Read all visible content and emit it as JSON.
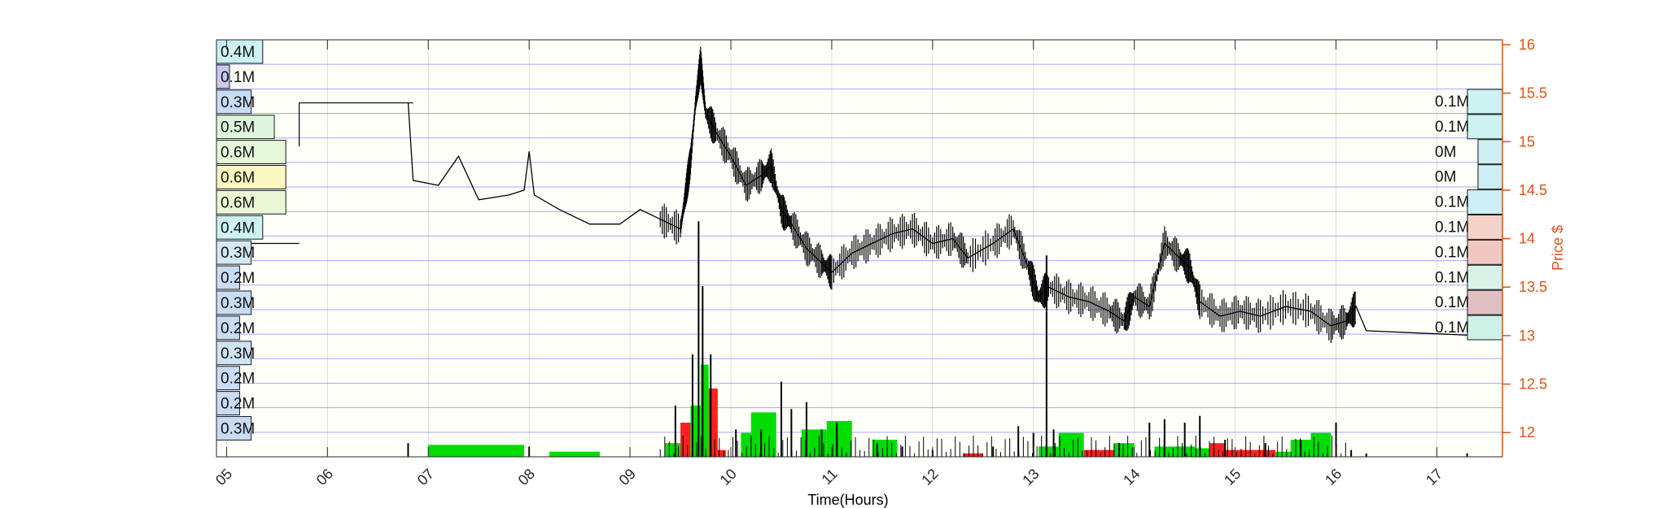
{
  "chart_data": {
    "type": "line",
    "title": "",
    "xlabel": "Time(Hours)",
    "ylabel_right": "Price $",
    "x_ticks": [
      "05",
      "06",
      "07",
      "08",
      "09",
      "10",
      "11",
      "12",
      "13",
      "14",
      "15",
      "16",
      "17"
    ],
    "xlim": [
      4.9,
      17.65
    ],
    "ylim": [
      11.75,
      16.05
    ],
    "y_ticks": [
      "12",
      "12.5",
      "13",
      "13.5",
      "14",
      "14.5",
      "15",
      "15.5",
      "16"
    ],
    "grid": true,
    "colors": {
      "axis_right": "#d95319",
      "grid": "#8080ff",
      "price_line": "#000000",
      "volume_up": "#00dd00",
      "volume_down": "#ff2020",
      "plot_bg": "#fffffa"
    },
    "price_series": {
      "name": "Price",
      "points": [
        [
          6.8,
          15.4
        ],
        [
          6.85,
          14.6
        ],
        [
          7.1,
          14.55
        ],
        [
          7.3,
          14.85
        ],
        [
          7.5,
          14.4
        ],
        [
          7.8,
          14.45
        ],
        [
          7.95,
          14.5
        ],
        [
          8.0,
          14.9
        ],
        [
          8.05,
          14.45
        ],
        [
          8.3,
          14.3
        ],
        [
          8.6,
          14.15
        ],
        [
          8.9,
          14.15
        ],
        [
          9.1,
          14.3
        ],
        [
          9.3,
          14.2
        ],
        [
          9.5,
          14.1
        ],
        [
          9.55,
          14.45
        ],
        [
          9.6,
          14.8
        ],
        [
          9.65,
          15.4
        ],
        [
          9.7,
          15.8
        ],
        [
          9.75,
          15.3
        ],
        [
          9.85,
          15.1
        ],
        [
          10.0,
          14.85
        ],
        [
          10.15,
          14.55
        ],
        [
          10.3,
          14.65
        ],
        [
          10.4,
          14.75
        ],
        [
          10.5,
          14.3
        ],
        [
          10.6,
          14.15
        ],
        [
          10.75,
          13.9
        ],
        [
          10.9,
          13.75
        ],
        [
          11.0,
          13.65
        ],
        [
          11.2,
          13.85
        ],
        [
          11.4,
          13.95
        ],
        [
          11.6,
          14.05
        ],
        [
          11.8,
          14.1
        ],
        [
          12.0,
          13.95
        ],
        [
          12.2,
          14.0
        ],
        [
          12.35,
          13.8
        ],
        [
          12.6,
          13.95
        ],
        [
          12.8,
          14.1
        ],
        [
          12.95,
          13.7
        ],
        [
          13.05,
          13.4
        ],
        [
          13.15,
          13.5
        ],
        [
          13.35,
          13.4
        ],
        [
          13.55,
          13.35
        ],
        [
          13.75,
          13.25
        ],
        [
          13.9,
          13.15
        ],
        [
          14.0,
          13.4
        ],
        [
          14.15,
          13.3
        ],
        [
          14.3,
          13.95
        ],
        [
          14.45,
          13.8
        ],
        [
          14.55,
          13.7
        ],
        [
          14.65,
          13.35
        ],
        [
          14.85,
          13.2
        ],
        [
          15.05,
          13.25
        ],
        [
          15.25,
          13.2
        ],
        [
          15.5,
          13.3
        ],
        [
          15.75,
          13.25
        ],
        [
          15.95,
          13.1
        ],
        [
          16.1,
          13.15
        ],
        [
          16.2,
          13.3
        ],
        [
          16.3,
          13.05
        ],
        [
          17.4,
          13.0
        ]
      ]
    },
    "volume_profile_left": {
      "labels": [
        "0.4M",
        "0.1M",
        "0.3M",
        "0.5M",
        "0.6M",
        "0.6M",
        "0.6M",
        "0.4M",
        "0.3M",
        "0.2M",
        "0.3M",
        "0.2M",
        "0.3M",
        "0.2M",
        "0.2M",
        "0.3M"
      ],
      "values": [
        0.4,
        0.1,
        0.3,
        0.5,
        0.6,
        0.6,
        0.6,
        0.4,
        0.3,
        0.2,
        0.3,
        0.2,
        0.3,
        0.2,
        0.2,
        0.3
      ],
      "colors": [
        "#ccf2f2",
        "#c8c8f0",
        "#c8dcf5",
        "#ddf5dd",
        "#e5f8d8",
        "#f8f8c0",
        "#eaf7d5",
        "#ccf2f2",
        "#d2e8f5",
        "#c8dcf5",
        "#c8dcf5",
        "#c8dcf5",
        "#cde4f5",
        "#c8dcf5",
        "#c8dcf5",
        "#c8dcf5"
      ]
    },
    "volume_profile_right": {
      "labels": [
        "0.1M",
        "0.1M",
        "0M",
        "0M",
        "0.1M",
        "0.1M",
        "0.1M",
        "0.1M",
        "0.1M",
        "0.1M"
      ],
      "values": [
        0.1,
        0.1,
        0.0,
        0.0,
        0.1,
        0.1,
        0.1,
        0.1,
        0.1,
        0.1
      ],
      "colors": [
        "#cdf2f2",
        "#cdf2f2",
        "#cdeff5",
        "#cdeff5",
        "#cdeff5",
        "#f5d2c8",
        "#f0c8c0",
        "#d8f2e8",
        "#e0c0c0",
        "#cdf2e5"
      ]
    },
    "volume_bars": [
      [
        7.0,
        7.95,
        0.035,
        "up"
      ],
      [
        8.2,
        8.7,
        0.015,
        "up"
      ],
      [
        9.35,
        9.5,
        0.04,
        "up"
      ],
      [
        9.5,
        9.6,
        0.1,
        "down"
      ],
      [
        9.6,
        9.7,
        0.15,
        "up"
      ],
      [
        9.7,
        9.78,
        0.27,
        "up"
      ],
      [
        9.78,
        9.87,
        0.2,
        "down"
      ],
      [
        9.87,
        9.95,
        0.02,
        "down"
      ],
      [
        10.1,
        10.2,
        0.07,
        "up"
      ],
      [
        10.2,
        10.45,
        0.13,
        "up"
      ],
      [
        10.7,
        10.95,
        0.08,
        "up"
      ],
      [
        10.95,
        11.2,
        0.105,
        "up"
      ],
      [
        11.4,
        11.65,
        0.05,
        "up"
      ],
      [
        12.3,
        12.5,
        0.01,
        "down"
      ],
      [
        13.05,
        13.25,
        0.03,
        "up"
      ],
      [
        13.25,
        13.5,
        0.07,
        "up"
      ],
      [
        13.5,
        13.8,
        0.02,
        "down"
      ],
      [
        13.8,
        14.0,
        0.04,
        "up"
      ],
      [
        14.2,
        14.6,
        0.03,
        "up"
      ],
      [
        14.6,
        14.75,
        0.025,
        "up"
      ],
      [
        14.75,
        14.9,
        0.04,
        "down"
      ],
      [
        14.9,
        15.4,
        0.02,
        "down"
      ],
      [
        15.4,
        15.55,
        0.015,
        "up"
      ],
      [
        15.55,
        15.75,
        0.05,
        "up"
      ],
      [
        15.75,
        15.95,
        0.07,
        "up"
      ]
    ],
    "volume_spikes": [
      [
        6.8,
        0.04
      ],
      [
        8.0,
        0.03
      ],
      [
        9.45,
        0.15
      ],
      [
        9.62,
        0.3
      ],
      [
        9.68,
        0.69
      ],
      [
        9.72,
        0.5
      ],
      [
        9.8,
        0.3
      ],
      [
        10.05,
        0.08
      ],
      [
        10.3,
        0.08
      ],
      [
        10.5,
        0.22
      ],
      [
        10.6,
        0.14
      ],
      [
        10.75,
        0.16
      ],
      [
        10.9,
        0.08
      ],
      [
        11.05,
        0.1
      ],
      [
        11.45,
        0.04
      ],
      [
        11.7,
        0.03
      ],
      [
        12.0,
        0.02
      ],
      [
        12.6,
        0.03
      ],
      [
        12.85,
        0.09
      ],
      [
        13.0,
        0.07
      ],
      [
        13.13,
        0.59
      ],
      [
        13.2,
        0.08
      ],
      [
        13.85,
        0.04
      ],
      [
        14.15,
        0.1
      ],
      [
        14.3,
        0.11
      ],
      [
        14.5,
        0.1
      ],
      [
        14.65,
        0.12
      ],
      [
        14.9,
        0.05
      ],
      [
        15.3,
        0.04
      ],
      [
        15.65,
        0.05
      ],
      [
        16.0,
        0.1
      ],
      [
        16.15,
        0.02
      ],
      [
        16.3,
        0.01
      ],
      [
        17.3,
        0.01
      ]
    ]
  }
}
